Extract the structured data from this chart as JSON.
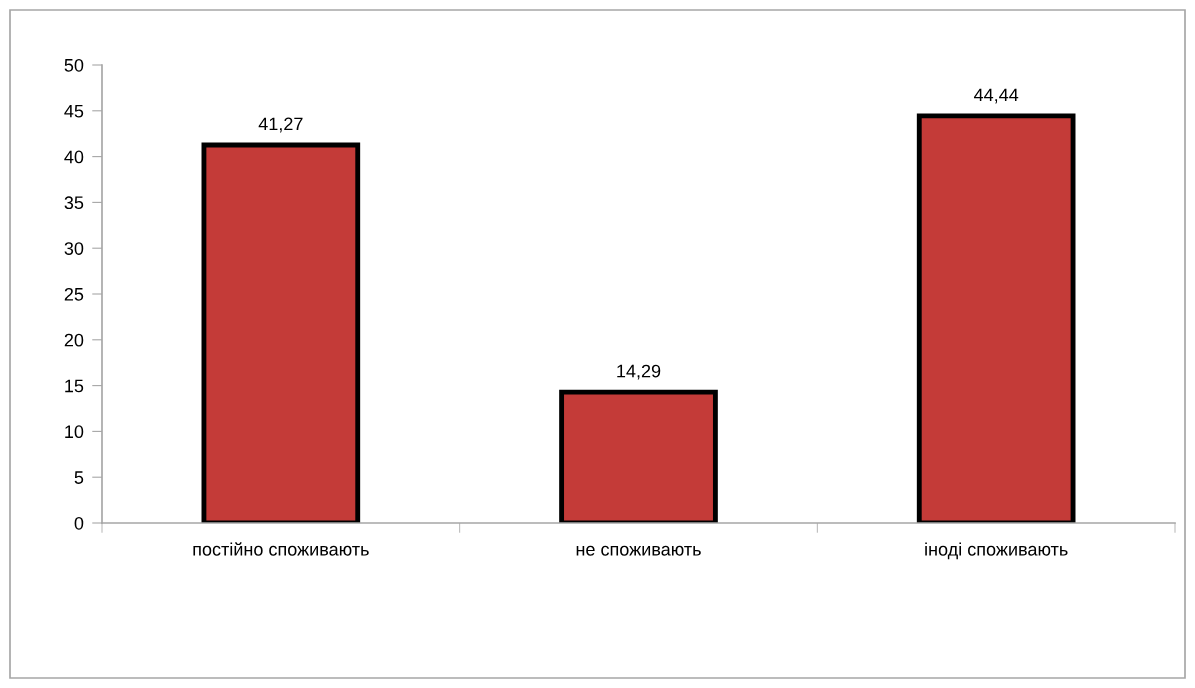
{
  "chart_data": {
    "type": "bar",
    "categories": [
      "постійно споживають",
      "не споживають",
      "іноді споживають"
    ],
    "values": [
      41.27,
      14.29,
      44.44
    ],
    "value_labels": [
      "41,27",
      "14,29",
      "44,44"
    ],
    "color": "#c43b38",
    "ylim": [
      0,
      50
    ],
    "yticks": [
      0,
      5,
      10,
      15,
      20,
      25,
      30,
      35,
      40,
      45,
      50
    ],
    "grid": false,
    "legend": false
  }
}
